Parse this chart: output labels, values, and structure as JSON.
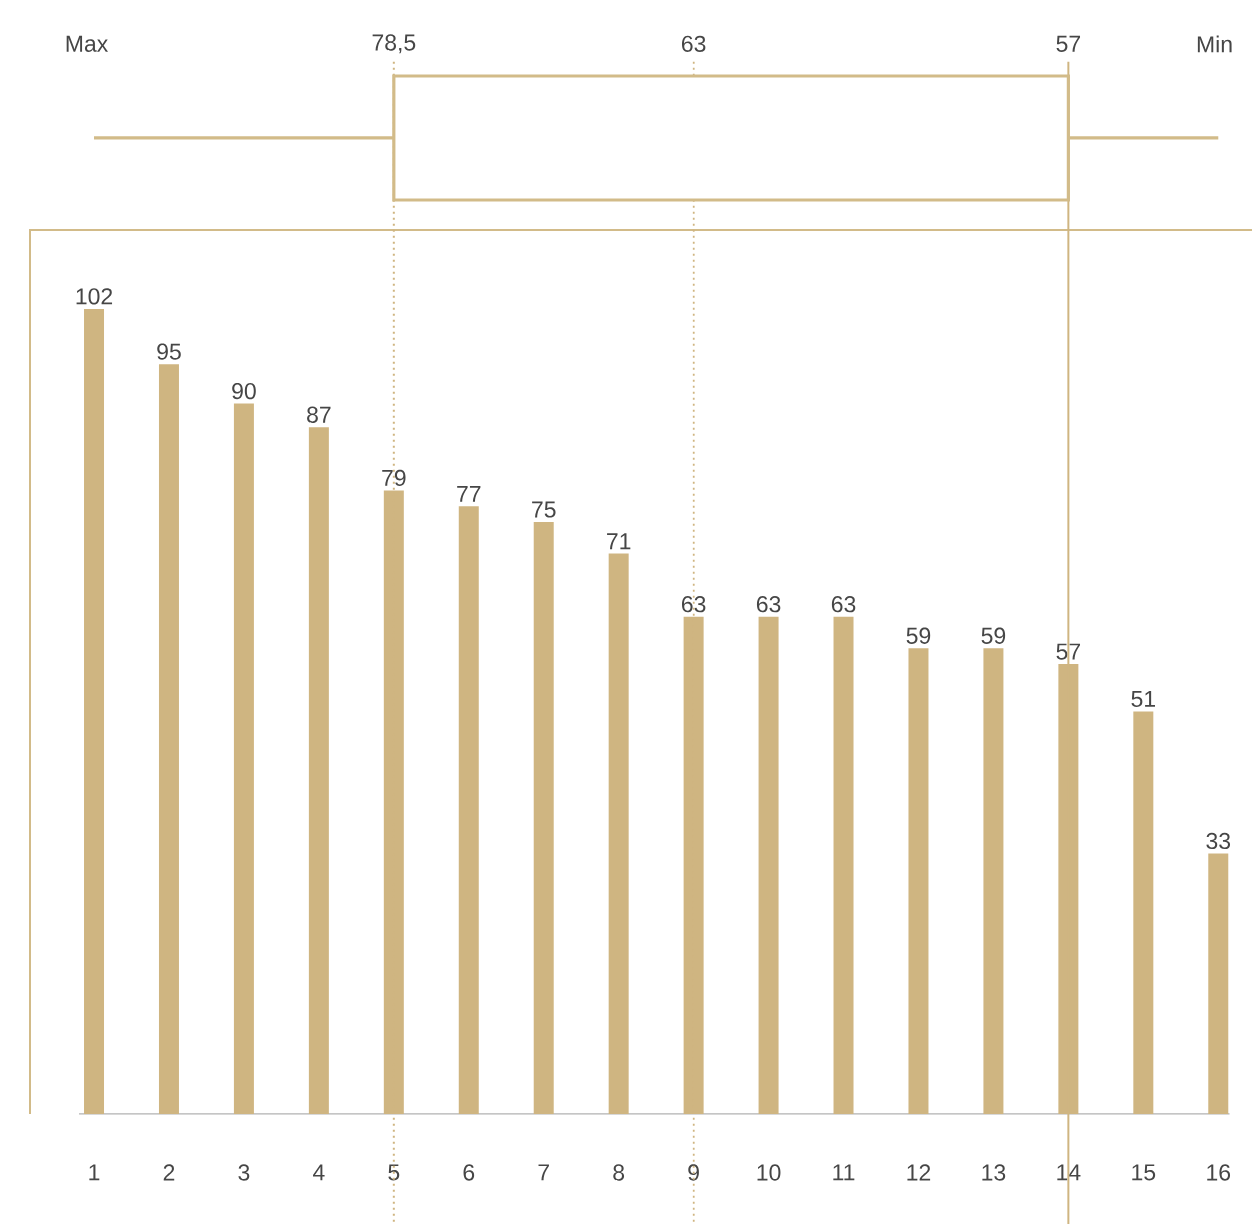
{
  "chart_data": {
    "type": "bar",
    "categories": [
      "1",
      "2",
      "3",
      "4",
      "5",
      "6",
      "7",
      "8",
      "9",
      "10",
      "11",
      "12",
      "13",
      "14",
      "15",
      "16"
    ],
    "values": [
      102,
      95,
      90,
      87,
      79,
      77,
      75,
      71,
      63,
      63,
      63,
      59,
      59,
      57,
      51,
      33
    ],
    "color": "#cfb581",
    "data_labels": true,
    "ylim": [
      0,
      112
    ],
    "tick_labels": "x",
    "ref_lines": [
      {
        "axis": "x",
        "value": "5",
        "label": "78,5",
        "line_style": "dotted",
        "color": "#cfb581"
      },
      {
        "axis": "x",
        "value": "9",
        "label": "63",
        "line_style": "dotted",
        "color": "#cfb581"
      },
      {
        "axis": "x",
        "value": "14",
        "label": "57",
        "line_style": "solid",
        "color": "#cfb581"
      }
    ],
    "annotations": [
      "Max",
      "Min"
    ]
  }
}
